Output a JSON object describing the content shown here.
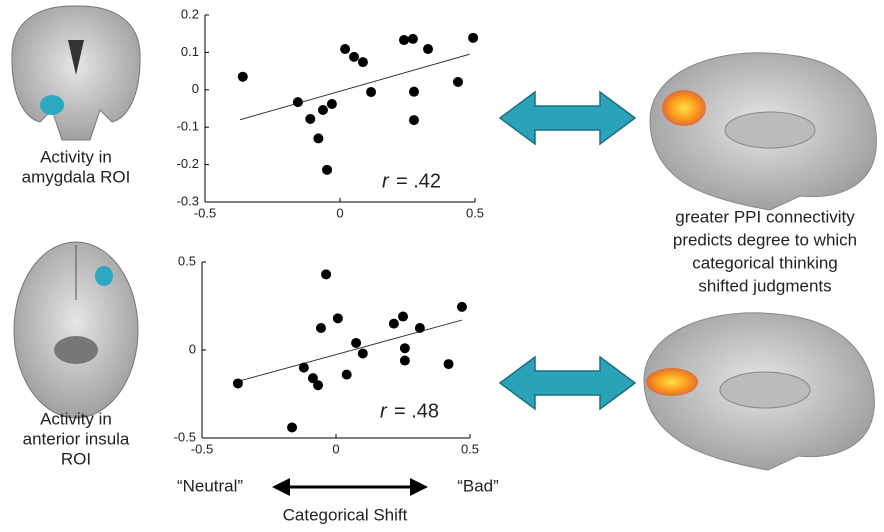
{
  "chart_data": [
    {
      "type": "scatter",
      "color": "#000000",
      "x": [
        -0.36,
        -0.156,
        -0.11,
        -0.08,
        -0.063,
        -0.03,
        -0.048,
        0.019,
        0.052,
        0.085,
        0.115,
        0.237,
        0.27,
        0.326,
        0.274,
        0.274,
        0.437,
        0.493
      ],
      "y": [
        0.035,
        -0.033,
        -0.078,
        -0.13,
        -0.054,
        -0.038,
        -0.214,
        0.109,
        0.088,
        0.074,
        -0.006,
        0.133,
        0.136,
        0.109,
        -0.005,
        -0.081,
        0.021,
        0.139
      ],
      "fit": {
        "x": [
          -0.37,
          0.48
        ],
        "y": [
          -0.08,
          0.095
        ]
      },
      "xlim": [
        -0.5,
        0.5
      ],
      "xticks": [
        -0.5,
        0,
        0.5
      ],
      "ylim": [
        -0.3,
        0.2
      ],
      "yticks": [
        -0.3,
        -0.2,
        -0.1,
        0,
        0.1,
        0.2
      ],
      "annotation": {
        "symbol": "r",
        "text": "= .42"
      }
    },
    {
      "type": "scatter",
      "color": "#000000",
      "x": [
        -0.366,
        -0.164,
        -0.12,
        -0.086,
        -0.067,
        -0.056,
        -0.037,
        0.007,
        0.04,
        0.075,
        0.1,
        0.216,
        0.25,
        0.257,
        0.257,
        0.313,
        0.42,
        0.47
      ],
      "y": [
        -0.19,
        -0.44,
        -0.1,
        -0.16,
        -0.2,
        0.125,
        0.43,
        0.18,
        -0.14,
        0.04,
        -0.02,
        0.15,
        0.19,
        0.01,
        -0.06,
        0.125,
        -0.08,
        0.245
      ],
      "fit": {
        "x": [
          -0.37,
          0.47
        ],
        "y": [
          -0.18,
          0.17
        ]
      },
      "xlim": [
        -0.5,
        0.5
      ],
      "xticks": [
        -0.5,
        0,
        0.5
      ],
      "ylim": [
        -0.5,
        0.5
      ],
      "yticks": [
        -0.5,
        0,
        0.5
      ],
      "annotation": {
        "symbol": "r",
        "text": "= .48"
      }
    }
  ],
  "roi_labels": [
    [
      "Activity in",
      "amygdala ROI"
    ],
    [
      "Activity in",
      "anterior insula",
      "ROI"
    ]
  ],
  "connectivity_caption": [
    "greater PPI connectivity",
    "predicts degree to which",
    "categorical thinking",
    "shifted judgments"
  ],
  "shift_axis": {
    "left": "“Neutral”",
    "right": "“Bad”",
    "title": "Categorical Shift"
  }
}
